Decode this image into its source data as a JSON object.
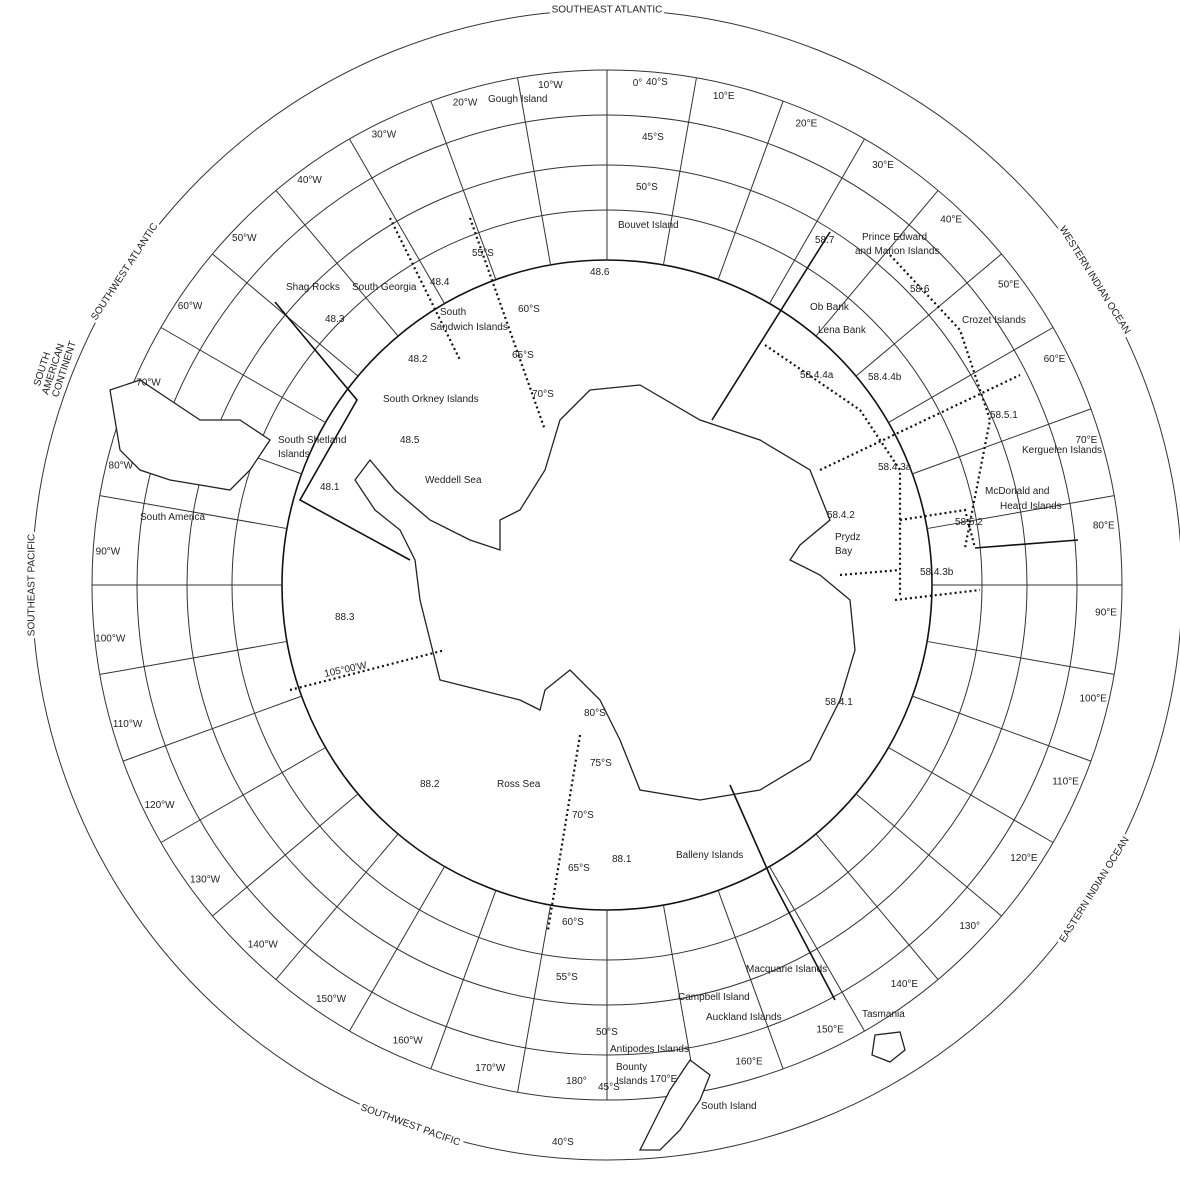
{
  "ocean_sectors": [
    "SOUTHEAST ATLANTIC",
    "WESTERN INDIAN OCEAN",
    "EASTERN INDIAN OCEAN",
    "SOUTHWEST PACIFIC",
    "SOUTHEAST PACIFIC",
    "SOUTHWEST ATLANTIC"
  ],
  "continent_label": [
    "SOUTH",
    "AMERICAN",
    "CONTINENT"
  ],
  "meridian_labels": [
    "0°",
    "10°E",
    "20°E",
    "30°E",
    "40°E",
    "50°E",
    "60°E",
    "70°E",
    "80°E",
    "90°E",
    "100°E",
    "110°E",
    "120°E",
    "130°",
    "140°E",
    "150°E",
    "160°E",
    "170°E",
    "180°",
    "170°W",
    "160°W",
    "150°W",
    "140°W",
    "130°W",
    "120°W",
    "110°W",
    "100°W",
    "90°W",
    "80°W",
    "70°W",
    "60°W",
    "50°W",
    "40°W",
    "30°W",
    "20°W",
    "10°W"
  ],
  "latitude_labels_top": [
    "40°S",
    "45°S",
    "50°S",
    "55°S",
    "60°S",
    "65°S",
    "70°S"
  ],
  "latitude_labels_bottom": [
    "80°S",
    "75°S",
    "70°S",
    "65°S",
    "60°S",
    "55°S",
    "50°S",
    "45°S",
    "40°S"
  ],
  "area_codes": [
    "48.1",
    "48.2",
    "48.3",
    "48.4",
    "48.5",
    "48.6",
    "58.4.1",
    "58.4.2",
    "58.4.3a",
    "58.4.3b",
    "58.4.4a",
    "58.4.4b",
    "58.5.1",
    "58.5.2",
    "58.6",
    "58.7",
    "88.1",
    "88.2",
    "88.3"
  ],
  "boundary_label": "105°00'W",
  "place_names": [
    "Gough Island",
    "Bouvet Island",
    "Prince Edward",
    "and Marion Islands",
    "Crozet Islands",
    "Ob Bank",
    "Lena Bank",
    "Kerguelen Islands",
    "McDonald and",
    "Heard Islands",
    "Prydz",
    "Bay",
    "Shag Rocks",
    "South Georgia",
    "South",
    "Sandwich Islands",
    "South Orkney Islands",
    "South Shetland",
    "Islands",
    "Weddell Sea",
    "South America",
    "Ross Sea",
    "Balleny Islands",
    "Macquarie Islands",
    "Campbell Island",
    "Auckland Islands",
    "Tasmania",
    "Antipodes Islands",
    "Bounty",
    "Islands",
    "South Island"
  ]
}
